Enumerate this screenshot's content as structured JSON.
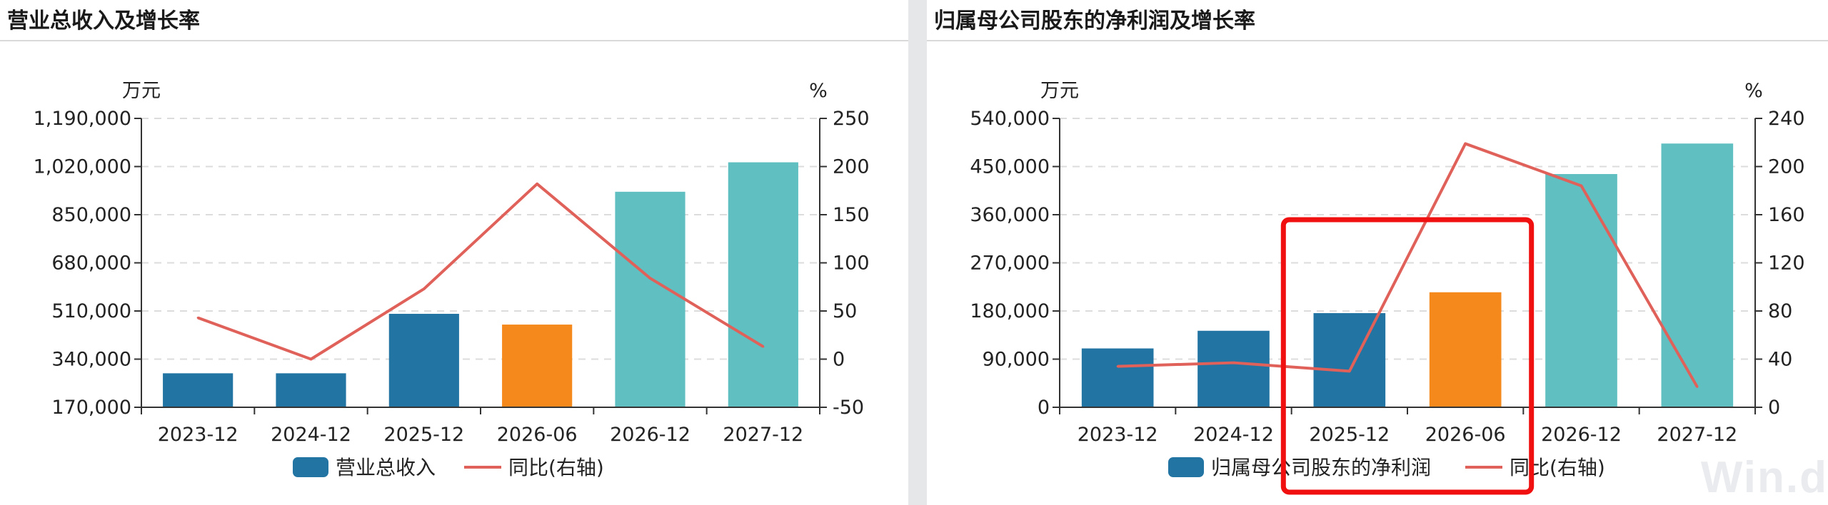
{
  "colors": {
    "bar_actual": "#2274a3",
    "bar_interim": "#f5891c",
    "bar_forecast": "#5fbfc1",
    "line": "#e0615a"
  },
  "watermark": "Win.d",
  "chart_data": [
    {
      "type": "bar",
      "title": "营业总收入及增长率",
      "categories": [
        "2023-12",
        "2024-12",
        "2025-12",
        "2026-06",
        "2026-12",
        "2027-12"
      ],
      "bar_kinds": [
        "actual",
        "actual",
        "actual",
        "interim",
        "forecast",
        "forecast"
      ],
      "series": [
        {
          "name": "营业总收入",
          "kind": "bar",
          "axis": "left",
          "values": [
            290000,
            290000,
            500000,
            462000,
            931000,
            1035000
          ]
        },
        {
          "name": "同比(右轴)",
          "kind": "line",
          "axis": "right",
          "values": [
            43,
            0,
            73,
            182,
            84,
            13
          ]
        }
      ],
      "y_left": {
        "unit": "万元",
        "min": 170000,
        "max": 1190000,
        "ticks": [
          "1,190,000",
          "1,020,000",
          "850,000",
          "680,000",
          "510,000",
          "340,000",
          "170,000"
        ]
      },
      "y_right": {
        "unit": "%",
        "min": -50,
        "max": 250,
        "ticks": [
          "250",
          "200",
          "150",
          "100",
          "50",
          "0",
          "-50"
        ]
      },
      "grid": true,
      "legend": "bottom"
    },
    {
      "type": "bar",
      "title": "归属母公司股东的净利润及增长率",
      "categories": [
        "2023-12",
        "2024-12",
        "2025-12",
        "2026-06",
        "2026-12",
        "2027-12"
      ],
      "bar_kinds": [
        "actual",
        "actual",
        "actual",
        "interim",
        "forecast",
        "forecast"
      ],
      "series": [
        {
          "name": "归属母公司股东的净利润",
          "kind": "bar",
          "axis": "left",
          "values": [
            110000,
            143000,
            176000,
            215000,
            436000,
            493000
          ]
        },
        {
          "name": "同比(右轴)",
          "kind": "line",
          "axis": "right",
          "values": [
            34,
            37,
            30,
            219,
            184,
            17
          ]
        }
      ],
      "y_left": {
        "unit": "万元",
        "min": 0,
        "max": 540000,
        "ticks": [
          "540,000",
          "450,000",
          "360,000",
          "270,000",
          "180,000",
          "90,000",
          "0"
        ]
      },
      "y_right": {
        "unit": "%",
        "min": 0,
        "max": 240,
        "ticks": [
          "240",
          "200",
          "160",
          "120",
          "80",
          "40",
          "0"
        ]
      },
      "grid": true,
      "legend": "bottom",
      "highlight": {
        "from": "2025-12",
        "to": "2026-06",
        "color": "#f01010"
      }
    }
  ]
}
